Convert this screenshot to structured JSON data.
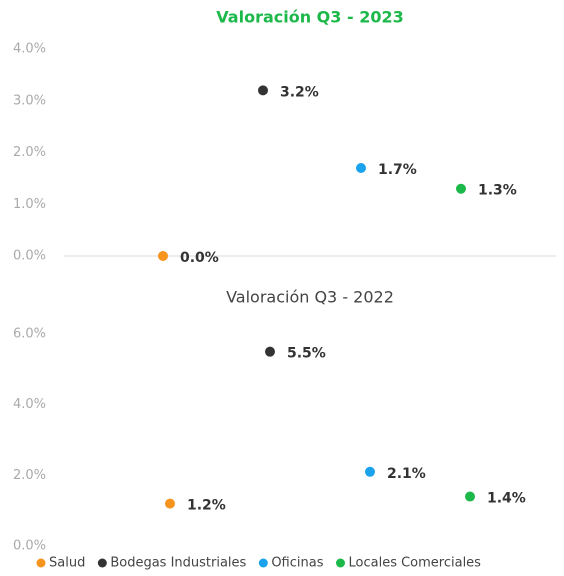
{
  "chart_data": [
    {
      "type": "scatter",
      "title": "Valoración Q3 - 2023",
      "title_color": "#1cb84a",
      "ylim": [
        0,
        4
      ],
      "yticks": [
        {
          "value": 0,
          "label": "0.0%"
        },
        {
          "value": 1,
          "label": "1.0%"
        },
        {
          "value": 2,
          "label": "2.0%"
        },
        {
          "value": 3,
          "label": "3.0%"
        },
        {
          "value": 4,
          "label": "4.0%"
        }
      ],
      "series": [
        {
          "color": "#f7941d",
          "values": [
            0.0
          ],
          "value_labels": [
            "0.0%"
          ]
        },
        {
          "color": "#333333",
          "values": [
            3.2
          ],
          "value_labels": [
            "3.2%"
          ]
        },
        {
          "color": "#1aa3ec",
          "values": [
            1.7
          ],
          "value_labels": [
            "1.7%"
          ]
        },
        {
          "color": "#1cb84a",
          "values": [
            1.3
          ],
          "value_labels": [
            "1.3%"
          ]
        }
      ]
    },
    {
      "type": "scatter",
      "title": "Valoración Q3 - 2022",
      "title_color": "#444444",
      "ylim": [
        0,
        6
      ],
      "yticks": [
        {
          "value": 0,
          "label": "0.0%"
        },
        {
          "value": 2,
          "label": "2.0%"
        },
        {
          "value": 4,
          "label": "4.0%"
        },
        {
          "value": 6,
          "label": "6.0%"
        }
      ],
      "series": [
        {
          "name": "Salud",
          "color": "#f7941d",
          "values": [
            1.2
          ],
          "value_labels": [
            "1.2%"
          ]
        },
        {
          "name": "Bodegas Industriales",
          "color": "#333333",
          "values": [
            5.5
          ],
          "value_labels": [
            "5.5%"
          ]
        },
        {
          "name": "Oficinas",
          "color": "#1aa3ec",
          "values": [
            2.1
          ],
          "value_labels": [
            "2.1%"
          ]
        },
        {
          "name": "Locales Comerciales",
          "color": "#1cb84a",
          "values": [
            1.4
          ],
          "value_labels": [
            "1.4%"
          ]
        }
      ]
    }
  ]
}
